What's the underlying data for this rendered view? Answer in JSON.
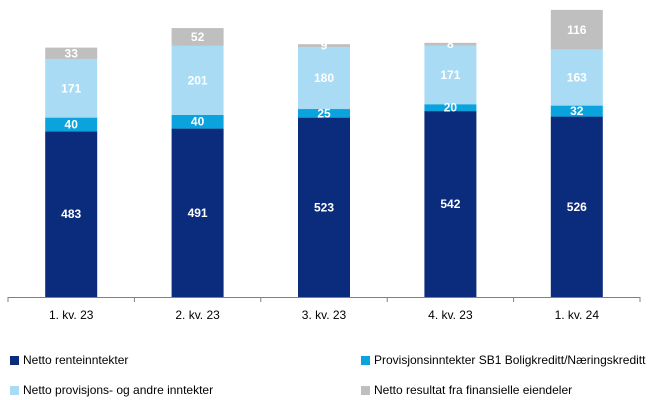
{
  "colors": {
    "netto_renteinntekter": "#0b2b7d",
    "provisjon_sb1": "#0aa3de",
    "netto_provisjon_andre": "#a9dcf4",
    "finansielle": "#bfbfbf",
    "axis": "#808080"
  },
  "chart_data": {
    "type": "bar",
    "stacked": true,
    "categories": [
      "1. kv. 23",
      "2. kv. 23",
      "3. kv. 23",
      "4. kv. 23",
      "1. kv. 24"
    ],
    "series": [
      {
        "name": "Netto renteinntekter",
        "key": "netto_renteinntekter",
        "values": [
          483,
          491,
          523,
          542,
          526
        ],
        "label_color": "#ffffff"
      },
      {
        "name": "Provisjonsinntekter SB1 Boligkreditt/Næringskreditt",
        "key": "provisjon_sb1",
        "values": [
          40,
          40,
          25,
          20,
          32
        ],
        "label_color": "#ffffff"
      },
      {
        "name": "Netto provisjons- og andre inntekter",
        "key": "netto_provisjon_andre",
        "values": [
          171,
          201,
          180,
          171,
          163
        ],
        "label_color": "#ffffff"
      },
      {
        "name": "Netto resultat fra finansielle eiendeler",
        "key": "finansielle",
        "values": [
          33,
          52,
          9,
          8,
          116
        ],
        "label_color": "#ffffff"
      }
    ],
    "ylim": [
      0,
      860
    ],
    "title": "",
    "xlabel": "",
    "ylabel": "",
    "grid": false,
    "legend_position": "bottom"
  },
  "legend": {
    "items": [
      {
        "label": "Netto renteinntekter",
        "color_key": "netto_renteinntekter"
      },
      {
        "label": "Provisjonsinntekter SB1 Boligkreditt/Næringskreditt",
        "color_key": "provisjon_sb1"
      },
      {
        "label": "Netto provisjons- og andre inntekter",
        "color_key": "netto_provisjon_andre"
      },
      {
        "label": "Netto resultat fra finansielle eiendeler",
        "color_key": "finansielle"
      }
    ]
  }
}
